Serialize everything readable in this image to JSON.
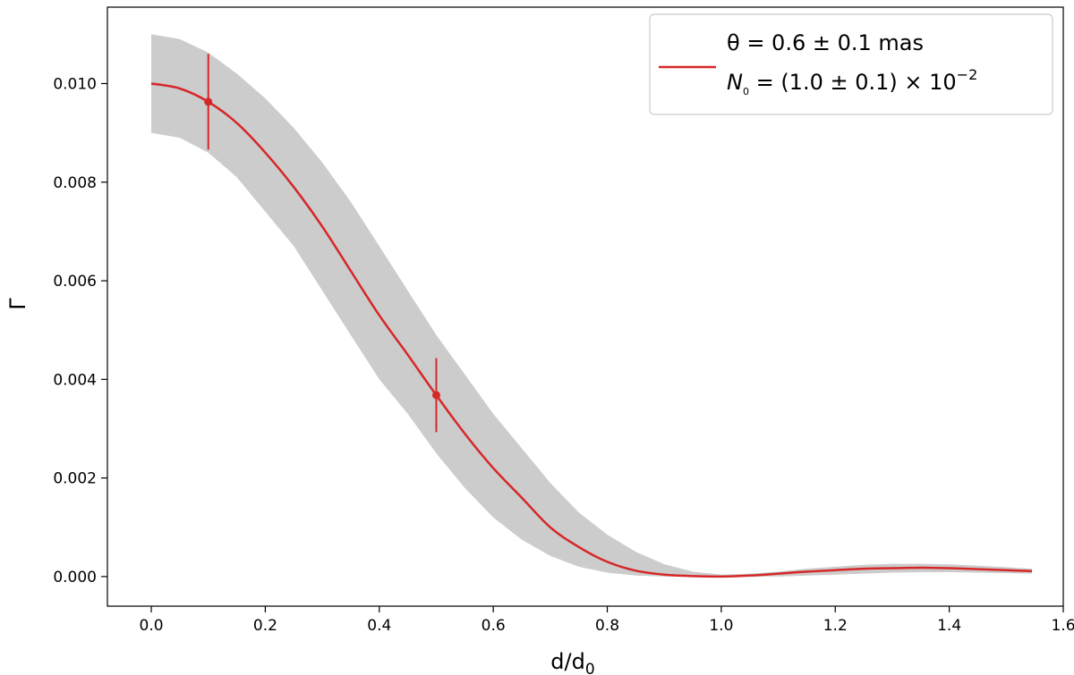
{
  "chart_data": {
    "type": "line",
    "xlabel": "d/d",
    "xlabel_sub": "0",
    "ylabel": "Γ",
    "xlim": [
      -0.077,
      1.6
    ],
    "ylim": [
      -0.0006,
      0.01155
    ],
    "x_ticks": [
      0.0,
      0.2,
      0.4,
      0.6,
      0.8,
      1.0,
      1.2,
      1.4,
      1.6
    ],
    "x_tick_labels": [
      "0.0",
      "0.2",
      "0.4",
      "0.6",
      "0.8",
      "1.0",
      "1.2",
      "1.4",
      "1.6"
    ],
    "y_ticks": [
      0.0,
      0.002,
      0.004,
      0.006,
      0.008,
      0.01
    ],
    "y_tick_labels": [
      "0.000",
      "0.002",
      "0.004",
      "0.006",
      "0.008",
      "0.010"
    ],
    "grid": false,
    "legend_position": "top-right",
    "line_color": "#d62728",
    "band_color": "#cccccc",
    "legend": {
      "line1": "θ = 0.6 ± 0.1 mas",
      "line2_symbol": "N",
      "line2_sub": "0",
      "line2_text": " = (1.0 ± 0.1) × 10",
      "line2_sup": "−2"
    },
    "series": [
      {
        "kind": "line",
        "x": [
          0.0,
          0.05,
          0.1,
          0.15,
          0.2,
          0.25,
          0.3,
          0.35,
          0.4,
          0.45,
          0.5,
          0.55,
          0.6,
          0.65,
          0.7,
          0.75,
          0.8,
          0.85,
          0.9,
          0.95,
          1.0,
          1.05,
          1.1,
          1.15,
          1.2,
          1.25,
          1.3,
          1.35,
          1.4,
          1.45,
          1.5,
          1.545
        ],
        "y": [
          0.01,
          0.0099,
          0.00963,
          0.0092,
          0.0086,
          0.0079,
          0.0071,
          0.0062,
          0.0053,
          0.0045,
          0.00368,
          0.0029,
          0.0022,
          0.0016,
          0.001,
          0.0006,
          0.0003,
          0.00012,
          4e-05,
          1e-05,
          0.0,
          2e-05,
          6e-05,
          0.0001,
          0.00013,
          0.00016,
          0.00017,
          0.00018,
          0.00017,
          0.00015,
          0.00013,
          0.00011
        ]
      },
      {
        "kind": "band",
        "x": [
          0.0,
          0.05,
          0.1,
          0.15,
          0.2,
          0.25,
          0.3,
          0.35,
          0.4,
          0.45,
          0.5,
          0.55,
          0.6,
          0.65,
          0.7,
          0.75,
          0.8,
          0.85,
          0.9,
          0.95,
          1.0,
          1.05,
          1.1,
          1.15,
          1.2,
          1.25,
          1.3,
          1.35,
          1.4,
          1.45,
          1.5,
          1.545
        ],
        "y_lower": [
          0.009,
          0.0089,
          0.0086,
          0.0081,
          0.0074,
          0.0067,
          0.0058,
          0.0049,
          0.004,
          0.0033,
          0.0025,
          0.0018,
          0.0012,
          0.00075,
          0.00042,
          0.0002,
          8e-05,
          2e-05,
          0.0,
          0.0,
          0.0,
          0.0,
          0.0,
          2e-05,
          4e-05,
          6e-05,
          8e-05,
          9e-05,
          9e-05,
          8e-05,
          7e-05,
          6e-05
        ],
        "y_upper": [
          0.011,
          0.0109,
          0.01063,
          0.0102,
          0.0097,
          0.0091,
          0.0084,
          0.0076,
          0.0067,
          0.0058,
          0.0049,
          0.0041,
          0.0033,
          0.0026,
          0.0019,
          0.0013,
          0.00085,
          0.0005,
          0.00025,
          0.0001,
          4e-05,
          6e-05,
          0.0001,
          0.00016,
          0.0002,
          0.00024,
          0.00026,
          0.00026,
          0.00025,
          0.00022,
          0.00019,
          0.00016
        ]
      },
      {
        "kind": "errorbar",
        "points": [
          {
            "x": 0.1,
            "y": 0.00963,
            "yerr": 0.00097
          },
          {
            "x": 0.5,
            "y": 0.00368,
            "yerr": 0.00075
          }
        ]
      }
    ]
  }
}
